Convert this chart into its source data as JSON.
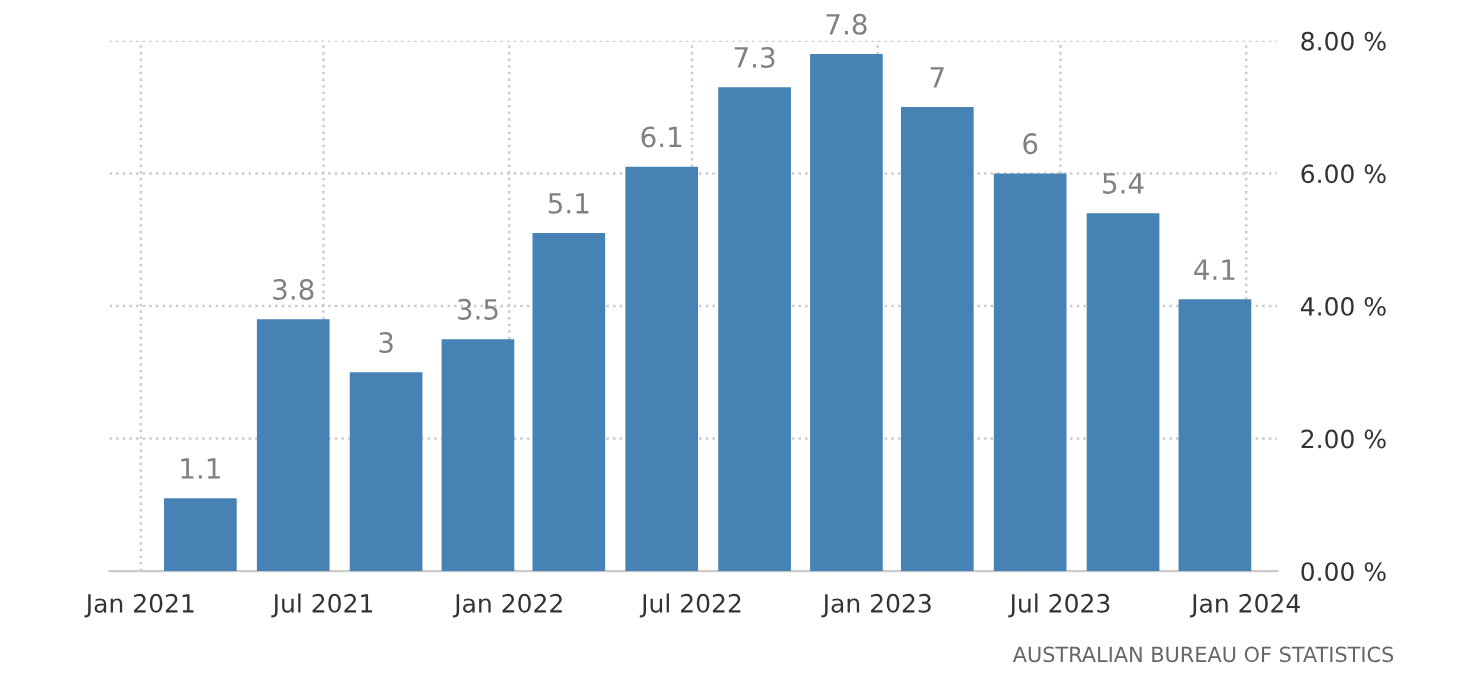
{
  "chart_data": {
    "type": "bar",
    "x": [
      "2021-03",
      "2021-06",
      "2021-09",
      "2021-12",
      "2022-03",
      "2022-06",
      "2022-09",
      "2022-12",
      "2023-03",
      "2023-06",
      "2023-09",
      "2023-12"
    ],
    "values": [
      1.1,
      3.8,
      3,
      3.5,
      5.1,
      6.1,
      7.3,
      7.8,
      7,
      6,
      5.4,
      4.1
    ],
    "color": "#4682b4",
    "data_labels": true,
    "xlim": [
      "2020-12",
      "2024-02"
    ],
    "xticks": [
      {
        "value": "2021-01",
        "label": "Jan 2021"
      },
      {
        "value": "2021-07",
        "label": "Jul 2021"
      },
      {
        "value": "2022-01",
        "label": "Jan 2022"
      },
      {
        "value": "2022-07",
        "label": "Jul 2022"
      },
      {
        "value": "2023-01",
        "label": "Jan 2023"
      },
      {
        "value": "2023-07",
        "label": "Jul 2023"
      },
      {
        "value": "2024-01",
        "label": "Jan 2024"
      }
    ],
    "ylim": [
      0,
      8
    ],
    "yticks": [
      {
        "value": 0,
        "label": "0.00 %"
      },
      {
        "value": 2,
        "label": "2.00 %"
      },
      {
        "value": 4,
        "label": "4.00 %"
      },
      {
        "value": 6,
        "label": "6.00 %"
      },
      {
        "value": 8,
        "label": "8.00 %"
      }
    ],
    "grid": true,
    "annotations": [
      "AUSTRALIAN BUREAU OF STATISTICS"
    ]
  }
}
